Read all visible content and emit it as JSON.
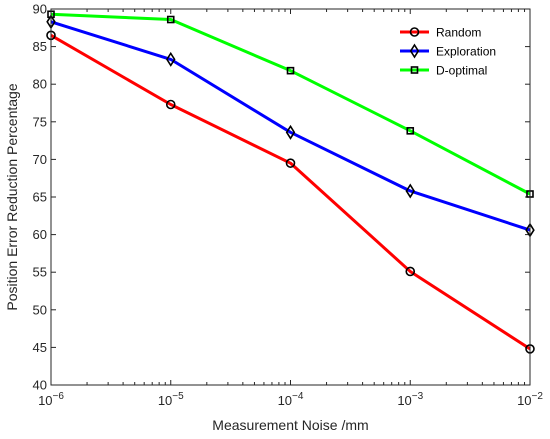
{
  "chart_data": {
    "type": "line",
    "title": "",
    "xlabel": "Measurement Noise /mm",
    "ylabel": "Position Error Reduction Percentage",
    "x_scale": "log",
    "x": [
      1e-06,
      1e-05,
      0.0001,
      0.001,
      0.01
    ],
    "x_tick_labels": [
      {
        "base": "10",
        "exp": "−6"
      },
      {
        "base": "10",
        "exp": "−5"
      },
      {
        "base": "10",
        "exp": "−4"
      },
      {
        "base": "10",
        "exp": "−3"
      },
      {
        "base": "10",
        "exp": "−2"
      }
    ],
    "xlim": [
      1e-06,
      0.01
    ],
    "ylim": [
      40,
      90
    ],
    "y_ticks": [
      40,
      45,
      50,
      55,
      60,
      65,
      70,
      75,
      80,
      85,
      90
    ],
    "grid": false,
    "legend_position": "top-right",
    "series": [
      {
        "name": "Random",
        "color": "#ff0000",
        "marker": "circle",
        "values": [
          86.5,
          77.3,
          69.5,
          55.1,
          44.8
        ]
      },
      {
        "name": "Exploration",
        "color": "#0000ff",
        "marker": "diamond",
        "values": [
          88.3,
          83.3,
          73.6,
          65.8,
          60.6
        ]
      },
      {
        "name": "D-optimal",
        "color": "#00ff00",
        "marker": "square",
        "values": [
          89.3,
          88.6,
          81.8,
          73.8,
          65.4
        ]
      }
    ]
  }
}
